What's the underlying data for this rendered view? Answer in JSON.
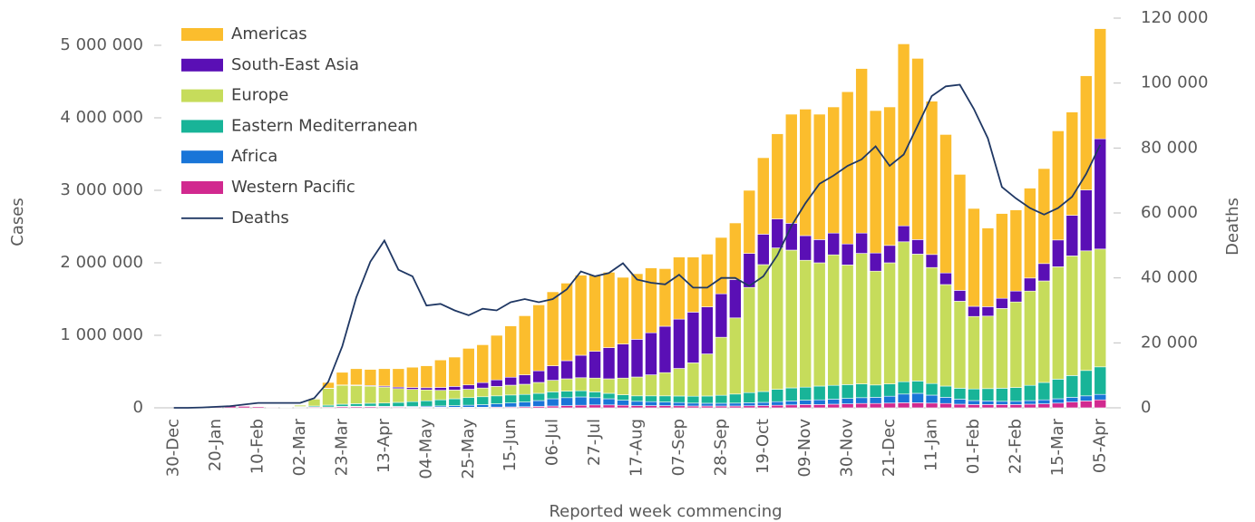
{
  "chart_data": {
    "type": "bar",
    "stacked": true,
    "x_label": "Reported week commencing",
    "y_label": "Cases",
    "y2_label": "Deaths",
    "categories": [
      "30-Dec",
      null,
      null,
      "20-Jan",
      null,
      null,
      "10-Feb",
      null,
      null,
      "02-Mar",
      null,
      null,
      "23-Mar",
      null,
      null,
      "13-Apr",
      null,
      null,
      "04-May",
      null,
      null,
      "25-May",
      null,
      null,
      "15-Jun",
      null,
      null,
      "06-Jul",
      null,
      null,
      "27-Jul",
      null,
      null,
      "17-Aug",
      null,
      null,
      "07-Sep",
      null,
      null,
      "28-Sep",
      null,
      null,
      "19-Oct",
      null,
      null,
      "09-Nov",
      null,
      null,
      "30-Nov",
      null,
      null,
      "21-Dec",
      null,
      null,
      "11-Jan",
      null,
      null,
      "01-Feb",
      null,
      null,
      "22-Feb",
      null,
      null,
      "15-Mar",
      null,
      null,
      "05-Apr"
    ],
    "series": [
      {
        "name": "Americas",
        "color": "#fbbd2d",
        "values": [
          0,
          0,
          0,
          0,
          0,
          0,
          0,
          0,
          0,
          5000,
          10000,
          80000,
          175000,
          225000,
          222000,
          239000,
          255000,
          280000,
          303000,
          379000,
          405000,
          504000,
          522000,
          615000,
          708000,
          815000,
          910000,
          1020000,
          1070000,
          1105000,
          1050000,
          1040000,
          920000,
          905000,
          895000,
          795000,
          857000,
          760000,
          727000,
          777000,
          780000,
          870000,
          1055000,
          1175000,
          1505000,
          1745000,
          1730000,
          1740000,
          2100000,
          2270000,
          1965000,
          1910000,
          2510000,
          2500000,
          2115000,
          1910000,
          1600000,
          1350000,
          1085000,
          1170000,
          1120000,
          1240000,
          1310000,
          1505000,
          1425000,
          1575000,
          1520000
        ]
      },
      {
        "name": "South-East Asia",
        "color": "#5a0fb5",
        "values": [
          0,
          0,
          0,
          0,
          0,
          0,
          0,
          0,
          0,
          0,
          0,
          3000,
          5000,
          8000,
          10000,
          15000,
          20000,
          25000,
          30000,
          40000,
          50000,
          60000,
          75000,
          90000,
          110000,
          130000,
          160000,
          200000,
          250000,
          310000,
          370000,
          430000,
          470000,
          520000,
          580000,
          640000,
          680000,
          700000,
          650000,
          600000,
          530000,
          470000,
          420000,
          400000,
          370000,
          340000,
          320000,
          300000,
          290000,
          280000,
          250000,
          240000,
          220000,
          200000,
          180000,
          160000,
          150000,
          140000,
          130000,
          140000,
          150000,
          180000,
          240000,
          370000,
          560000,
          840000,
          1520000
        ]
      },
      {
        "name": "Europe",
        "color": "#c6dc5b",
        "values": [
          0,
          0,
          0,
          0,
          0,
          0,
          0,
          0,
          1000,
          20000,
          95000,
          230000,
          260000,
          250000,
          235000,
          220000,
          190000,
          170000,
          150000,
          130000,
          120000,
          115000,
          120000,
          130000,
          135000,
          140000,
          150000,
          160000,
          170000,
          180000,
          190000,
          200000,
          230000,
          260000,
          290000,
          320000,
          380000,
          460000,
          580000,
          800000,
          1050000,
          1450000,
          1750000,
          1950000,
          1900000,
          1750000,
          1700000,
          1800000,
          1650000,
          1800000,
          1570000,
          1670000,
          1930000,
          1750000,
          1600000,
          1400000,
          1200000,
          1000000,
          1000000,
          1100000,
          1180000,
          1300000,
          1400000,
          1550000,
          1650000,
          1650000,
          1625000
        ]
      },
      {
        "name": "Eastern Mediterranean",
        "color": "#18b498",
        "values": [
          0,
          0,
          0,
          0,
          0,
          0,
          0,
          0,
          2000,
          10000,
          15000,
          25000,
          30000,
          35000,
          40000,
          45000,
          55000,
          65000,
          75000,
          85000,
          95000,
          105000,
          110000,
          110000,
          110000,
          105000,
          100000,
          95000,
          90000,
          85000,
          80000,
          75000,
          75000,
          75000,
          80000,
          85000,
          90000,
          95000,
          100000,
          110000,
          125000,
          140000,
          150000,
          170000,
          180000,
          180000,
          190000,
          190000,
          190000,
          190000,
          170000,
          170000,
          170000,
          170000,
          160000,
          155000,
          150000,
          160000,
          170000,
          180000,
          190000,
          210000,
          240000,
          270000,
          300000,
          350000,
          380000
        ]
      },
      {
        "name": "Africa",
        "color": "#1975d8",
        "values": [
          0,
          0,
          0,
          0,
          0,
          0,
          0,
          0,
          0,
          0,
          0,
          2000,
          5000,
          7000,
          8000,
          9000,
          10000,
          12000,
          14000,
          18000,
          22000,
          28000,
          35000,
          45000,
          55000,
          65000,
          80000,
          100000,
          110000,
          115000,
          100000,
          85000,
          70000,
          60000,
          55000,
          50000,
          45000,
          40000,
          38000,
          38000,
          40000,
          42000,
          45000,
          50000,
          55000,
          60000,
          65000,
          70000,
          75000,
          80000,
          85000,
          95000,
          120000,
          130000,
          110000,
          85000,
          70000,
          55000,
          50000,
          45000,
          45000,
          50000,
          55000,
          60000,
          65000,
          70000,
          75000
        ]
      },
      {
        "name": "Western Pacific",
        "color": "#d1298f",
        "values": [
          0,
          0,
          2000,
          15000,
          25000,
          20000,
          15000,
          8000,
          5000,
          8000,
          10000,
          10000,
          15000,
          15000,
          15000,
          12000,
          10000,
          8000,
          8000,
          8000,
          8000,
          8000,
          8000,
          10000,
          12000,
          15000,
          20000,
          25000,
          30000,
          35000,
          40000,
          40000,
          35000,
          30000,
          30000,
          30000,
          28000,
          25000,
          25000,
          25000,
          25000,
          28000,
          30000,
          35000,
          40000,
          45000,
          45000,
          50000,
          55000,
          60000,
          60000,
          65000,
          70000,
          70000,
          65000,
          60000,
          50000,
          45000,
          45000,
          45000,
          45000,
          50000,
          55000,
          65000,
          80000,
          95000,
          110000
        ]
      },
      {
        "name": "Deaths",
        "type": "line",
        "axis": "y2",
        "color": "#203864",
        "values": [
          0,
          0,
          100,
          300,
          500,
          1000,
          1500,
          1500,
          1500,
          1500,
          3000,
          8000,
          19000,
          34000,
          45000,
          51500,
          42500,
          40500,
          31500,
          32000,
          30000,
          28500,
          30500,
          30000,
          32500,
          33500,
          32500,
          33500,
          36500,
          42000,
          40500,
          41500,
          44500,
          39500,
          38500,
          38000,
          41000,
          37000,
          37000,
          40000,
          40000,
          37500,
          40500,
          47000,
          56000,
          63000,
          69000,
          71500,
          74500,
          76500,
          80500,
          74500,
          78000,
          87000,
          96000,
          99000,
          99500,
          92000,
          83000,
          68000,
          64500,
          61500,
          59500,
          61500,
          65000,
          72000,
          81000
        ]
      }
    ],
    "ylim": [
      0,
      5375000
    ],
    "yticks": [
      0,
      {
        "value": 1000000,
        "label": "1 000 000"
      },
      {
        "value": 2000000,
        "label": "2 000 000"
      },
      {
        "value": 3000000,
        "label": "3 000 000"
      },
      {
        "value": 4000000,
        "label": "4 000 000"
      },
      {
        "value": 5000000,
        "label": "5 000 000"
      }
    ],
    "y2lim": [
      0,
      120000
    ],
    "y2ticks": [
      0,
      {
        "value": 20000,
        "label": "20 000"
      },
      {
        "value": 40000,
        "label": "40 000"
      },
      {
        "value": 60000,
        "label": "60 000"
      },
      {
        "value": 80000,
        "label": "80 000"
      },
      {
        "value": 100000,
        "label": "100 000"
      },
      {
        "value": 120000,
        "label": "120 000"
      }
    ],
    "grid": false,
    "legend": "upper left"
  }
}
